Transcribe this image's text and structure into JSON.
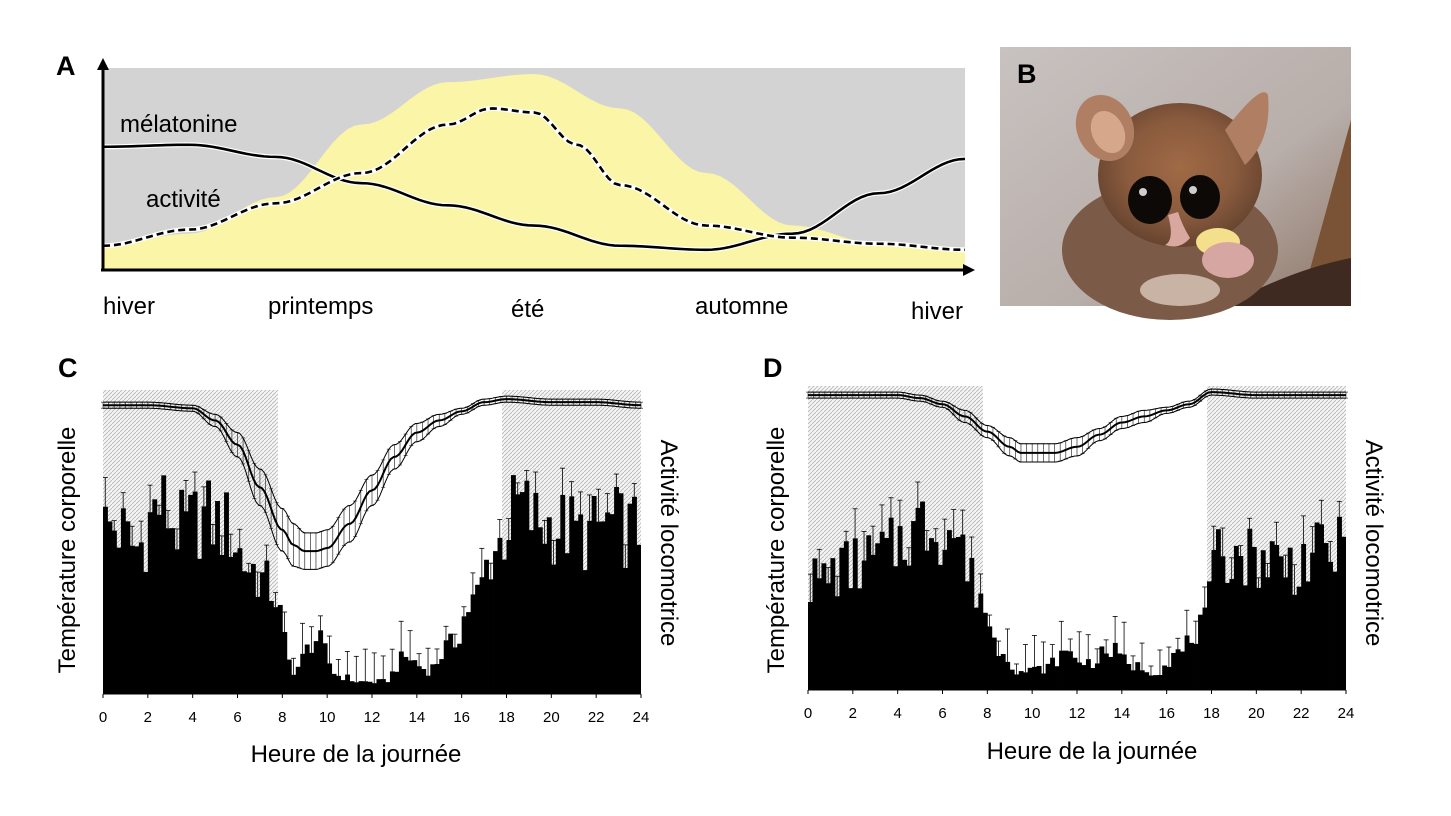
{
  "panels": {
    "a": "A",
    "b": "B",
    "c": "C",
    "d": "D"
  },
  "chart_data": [
    {
      "type": "line",
      "panel": "A",
      "x_categories": [
        "hiver",
        "printemps",
        "été",
        "automne",
        "hiver"
      ],
      "series": [
        {
          "name": "mélatonine",
          "style": "solid",
          "x": [
            0,
            0.1,
            0.2,
            0.3,
            0.4,
            0.5,
            0.6,
            0.7,
            0.8,
            0.9,
            1.0
          ],
          "values": [
            0.61,
            0.62,
            0.56,
            0.43,
            0.32,
            0.22,
            0.12,
            0.1,
            0.18,
            0.38,
            0.55
          ]
        },
        {
          "name": "activité",
          "style": "dashed",
          "x": [
            0,
            0.1,
            0.2,
            0.3,
            0.4,
            0.45,
            0.5,
            0.55,
            0.6,
            0.7,
            0.8,
            0.9,
            1.0
          ],
          "values": [
            0.12,
            0.2,
            0.33,
            0.48,
            0.72,
            0.8,
            0.78,
            0.62,
            0.42,
            0.22,
            0.16,
            0.13,
            0.1
          ]
        }
      ],
      "background_curve": {
        "name": "season daylight",
        "x": [
          0,
          0.1,
          0.2,
          0.3,
          0.4,
          0.5,
          0.6,
          0.7,
          0.8,
          0.9,
          1.0
        ],
        "values": [
          0.12,
          0.18,
          0.36,
          0.72,
          0.93,
          0.97,
          0.8,
          0.48,
          0.22,
          0.13,
          0.11
        ]
      },
      "colors": {
        "background": "#d3d3d3",
        "daylight": "#fbf5a7",
        "line": "#000000"
      }
    },
    {
      "type": "bar",
      "panel": "C",
      "xlabel": "Heure de la journée",
      "ylabel_left": "Température corporelle",
      "ylabel_right": "Activité locomotrice",
      "x_ticks": [
        0,
        2,
        4,
        6,
        8,
        10,
        12,
        14,
        16,
        18,
        20,
        22,
        24
      ],
      "xlim": [
        0,
        24
      ],
      "night_shading": [
        [
          0,
          7.8
        ],
        [
          17.8,
          24
        ]
      ],
      "activity_hourly": [
        0.55,
        0.48,
        0.62,
        0.54,
        0.58,
        0.55,
        0.42,
        0.35,
        0.08,
        0.18,
        0.06,
        0.04,
        0.04,
        0.12,
        0.08,
        0.16,
        0.3,
        0.48,
        0.62,
        0.56,
        0.55,
        0.52,
        0.56,
        0.54
      ],
      "temperature": {
        "x": [
          0,
          2,
          4,
          5,
          6,
          7,
          8,
          8.5,
          9,
          9.5,
          10,
          11,
          12,
          13,
          14,
          15,
          16,
          17,
          18,
          20,
          22,
          24
        ],
        "values": [
          0.95,
          0.95,
          0.94,
          0.9,
          0.82,
          0.68,
          0.54,
          0.49,
          0.47,
          0.47,
          0.48,
          0.56,
          0.67,
          0.78,
          0.86,
          0.9,
          0.93,
          0.96,
          0.97,
          0.96,
          0.96,
          0.95
        ],
        "error": [
          0.01,
          0.01,
          0.01,
          0.02,
          0.04,
          0.06,
          0.07,
          0.07,
          0.06,
          0.06,
          0.06,
          0.06,
          0.05,
          0.04,
          0.03,
          0.02,
          0.01,
          0.01,
          0.01,
          0.01,
          0.01,
          0.01
        ]
      },
      "colors": {
        "bars": "#000000",
        "shading": "#e6e6e6"
      }
    },
    {
      "type": "bar",
      "panel": "D",
      "xlabel": "Heure de la journée",
      "ylabel_left": "Température corporelle",
      "ylabel_right": "Activité locomotrice",
      "x_ticks": [
        0,
        2,
        4,
        6,
        8,
        10,
        12,
        14,
        16,
        18,
        20,
        22,
        24
      ],
      "xlim": [
        0,
        24
      ],
      "night_shading": [
        [
          0,
          7.8
        ],
        [
          17.8,
          24
        ]
      ],
      "activity_hourly": [
        0.36,
        0.4,
        0.42,
        0.45,
        0.52,
        0.55,
        0.52,
        0.34,
        0.14,
        0.06,
        0.07,
        0.12,
        0.09,
        0.13,
        0.08,
        0.06,
        0.12,
        0.2,
        0.46,
        0.44,
        0.44,
        0.41,
        0.44,
        0.46
      ],
      "temperature": {
        "x": [
          0,
          2,
          4,
          5,
          6,
          7,
          8,
          9,
          9.5,
          10,
          11,
          12,
          13,
          14,
          15,
          16,
          17,
          18,
          20,
          22,
          24
        ],
        "values": [
          0.97,
          0.97,
          0.97,
          0.96,
          0.94,
          0.9,
          0.85,
          0.8,
          0.78,
          0.78,
          0.78,
          0.8,
          0.84,
          0.88,
          0.9,
          0.92,
          0.94,
          0.98,
          0.97,
          0.97,
          0.97
        ],
        "error": [
          0.01,
          0.01,
          0.01,
          0.01,
          0.01,
          0.02,
          0.02,
          0.03,
          0.03,
          0.03,
          0.03,
          0.03,
          0.02,
          0.02,
          0.02,
          0.01,
          0.01,
          0.01,
          0.01,
          0.01,
          0.01
        ]
      },
      "colors": {
        "bars": "#000000",
        "shading": "#e6e6e6"
      }
    }
  ]
}
